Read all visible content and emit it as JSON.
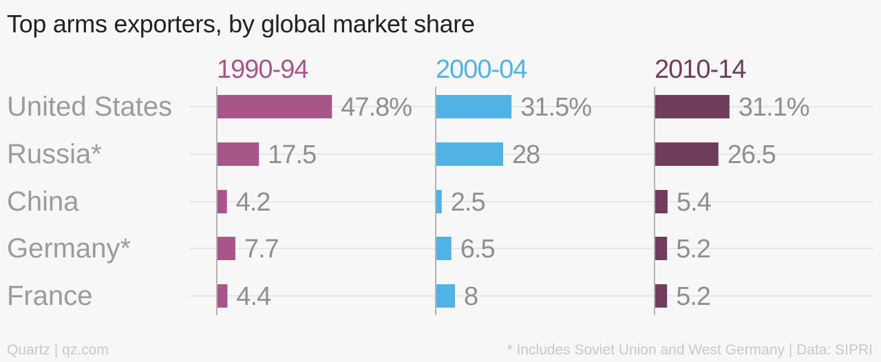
{
  "title": "Top arms exporters, by global market share",
  "footer": {
    "source": "Quartz | qz.com",
    "note": "* Includes Soviet Union and West Germany | Data: SIPRI"
  },
  "colors": {
    "series_1990_94": "#a8568a",
    "series_2000_04": "#51b2e5",
    "series_2010_14": "#703c5c",
    "category_label": "#9b9b9b",
    "value_label": "#8f8f8f",
    "gridline": "#e6e6e6",
    "axis_line": "#b3b3b3"
  },
  "chart_data": {
    "type": "bar",
    "orientation": "horizontal",
    "layout": "small-multiples",
    "title": "Top arms exporters, by global market share",
    "categories": [
      "United States",
      "Russia*",
      "China",
      "Germany*",
      "France"
    ],
    "series": [
      {
        "name": "1990-94",
        "color": "#a8568a",
        "values": [
          47.8,
          17.5,
          4.2,
          7.7,
          4.4
        ],
        "labels": [
          "47.8%",
          "17.5",
          "4.2",
          "7.7",
          "4.4"
        ]
      },
      {
        "name": "2000-04",
        "color": "#51b2e5",
        "values": [
          31.5,
          28,
          2.5,
          6.5,
          8
        ],
        "labels": [
          "31.5%",
          "28",
          "2.5",
          "6.5",
          "8"
        ]
      },
      {
        "name": "2010-14",
        "color": "#703c5c",
        "values": [
          31.1,
          26.5,
          5.4,
          5.2,
          5.2
        ],
        "labels": [
          "31.1%",
          "26.5",
          "5.4",
          "5.2",
          "5.2"
        ]
      }
    ],
    "xlim": [
      0,
      100
    ],
    "grid": true,
    "legend": "none"
  }
}
